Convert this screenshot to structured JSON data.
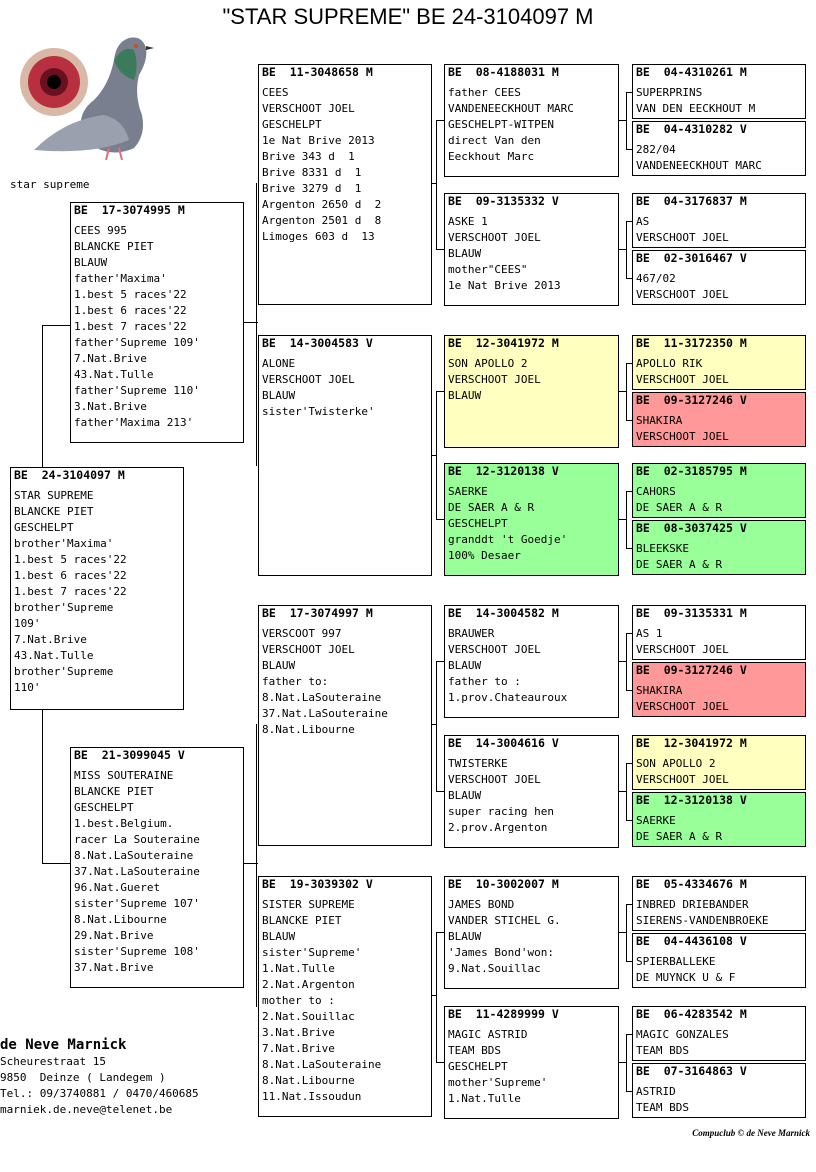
{
  "title": "\"STAR SUPREME\"  BE  24-3104097 M",
  "photo_caption": "star supreme",
  "colors": {
    "yellow": "#ffffc0",
    "green": "#99ff99",
    "red": "#ff9999"
  },
  "subject": {
    "header": "BE  24-3104097 M",
    "lines": [
      "STAR SUPREME",
      "BLANCKE PIET",
      "GESCHELPT",
      "brother'Maxima'",
      "1.best 5 races'22",
      "1.best 6 races'22",
      "1.best 7 races'22",
      "brother'Supreme",
      "109'",
      "7.Nat.Brive",
      "43.Nat.Tulle",
      "brother'Supreme",
      "110'"
    ]
  },
  "sire": {
    "header": "BE  17-3074995 M",
    "lines": [
      "CEES 995",
      "BLANCKE PIET",
      "BLAUW",
      "father'Maxima'",
      "1.best 5 races'22",
      "1.best 6 races'22",
      "1.best 7 races'22",
      "father'Supreme 109'",
      "7.Nat.Brive",
      "43.Nat.Tulle",
      "father'Supreme 110'",
      "3.Nat.Brive",
      "father'Maxima 213'"
    ]
  },
  "dam": {
    "header": "BE  21-3099045 V",
    "lines": [
      "MISS SOUTERAINE",
      "BLANCKE PIET",
      "GESCHELPT",
      "1.best.Belgium.",
      "racer La Souteraine",
      "8.Nat.LaSouteraine",
      "37.Nat.LaSouteraine",
      "96.Nat.Gueret",
      "sister'Supreme 107'",
      "8.Nat.Libourne",
      "29.Nat.Brive",
      "sister'Supreme 108'",
      "37.Nat.Brive"
    ]
  },
  "gen2": [
    {
      "header": "BE  11-3048658 M",
      "lines": [
        "CEES",
        "VERSCHOOT JOEL",
        "GESCHELPT",
        "1e Nat Brive 2013",
        "Brive 343 d  1",
        "Brive 8331 d  1",
        "Brive 3279 d  1",
        "Argenton 2650 d  2",
        "Argenton 2501 d  8",
        "Limoges 603 d  13"
      ]
    },
    {
      "header": "BE  14-3004583 V",
      "lines": [
        "ALONE",
        "VERSCHOOT JOEL",
        "BLAUW",
        "sister'Twisterke'"
      ]
    },
    {
      "header": "BE  17-3074997 M",
      "lines": [
        "VERSCOOT 997",
        "VERSCHOOT JOEL",
        "BLAUW",
        "father to:",
        "8.Nat.LaSouteraine",
        "37.Nat.LaSouteraine",
        "8.Nat.Libourne"
      ]
    },
    {
      "header": "BE  19-3039302 V",
      "lines": [
        "SISTER SUPREME",
        "BLANCKE PIET",
        "BLAUW",
        "sister'Supreme'",
        "1.Nat.Tulle",
        "2.Nat.Argenton",
        "mother to :",
        "2.Nat.Souillac",
        "3.Nat.Brive",
        "7.Nat.Brive",
        "8.Nat.LaSouteraine",
        "8.Nat.Libourne",
        "11.Nat.Issoudun"
      ]
    }
  ],
  "gen3": [
    {
      "header": "BE  08-4188031 M",
      "lines": [
        "father CEES",
        "VANDENEECKHOUT MARC",
        "GESCHELPT-WITPEN",
        "direct Van den",
        "Eeckhout Marc"
      ],
      "color": ""
    },
    {
      "header": "BE  09-3135332 V",
      "lines": [
        "ASKE 1",
        "VERSCHOOT JOEL",
        "BLAUW",
        "mother\"CEES\"",
        "1e Nat Brive 2013"
      ],
      "color": ""
    },
    {
      "header": "BE  12-3041972 M",
      "lines": [
        "SON APOLLO 2",
        "VERSCHOOT JOEL",
        "BLAUW"
      ],
      "color": "yellow"
    },
    {
      "header": "BE  12-3120138 V",
      "lines": [
        "SAERKE",
        "DE SAER A & R",
        "GESCHELPT",
        "granddt 't Goedje'",
        "100% Desaer"
      ],
      "color": "green"
    },
    {
      "header": "BE  14-3004582 M",
      "lines": [
        "BRAUWER",
        "VERSCHOOT JOEL",
        "BLAUW",
        "father to :",
        "1.prov.Chateauroux"
      ],
      "color": ""
    },
    {
      "header": "BE  14-3004616 V",
      "lines": [
        "TWISTERKE",
        "VERSCHOOT JOEL",
        "BLAUW",
        "super racing hen",
        "2.prov.Argenton"
      ],
      "color": ""
    },
    {
      "header": "BE  10-3002007 M",
      "lines": [
        "JAMES BOND",
        "VANDER STICHEL G.",
        "BLAUW",
        "'James Bond'won:",
        "9.Nat.Souillac"
      ],
      "color": ""
    },
    {
      "header": "BE  11-4289999 V",
      "lines": [
        "MAGIC ASTRID",
        "TEAM BDS",
        "GESCHELPT",
        "mother'Supreme'",
        "1.Nat.Tulle"
      ],
      "color": ""
    }
  ],
  "gen4": [
    {
      "header": "BE  04-4310261 M",
      "lines": [
        "SUPERPRINS",
        "VAN DEN EECKHOUT M"
      ],
      "color": ""
    },
    {
      "header": "BE  04-4310282 V",
      "lines": [
        "282/04",
        "VANDENEECKHOUT MARC"
      ],
      "color": ""
    },
    {
      "header": "BE  04-3176837 M",
      "lines": [
        "AS",
        "VERSCHOOT JOEL"
      ],
      "color": ""
    },
    {
      "header": "BE  02-3016467 V",
      "lines": [
        "467/02",
        "VERSCHOOT JOEL"
      ],
      "color": ""
    },
    {
      "header": "BE  11-3172350 M",
      "lines": [
        "APOLLO RIK",
        "VERSCHOOT JOEL"
      ],
      "color": "yellow"
    },
    {
      "header": "BE  09-3127246 V",
      "lines": [
        "SHAKIRA",
        "VERSCHOOT JOEL"
      ],
      "color": "red"
    },
    {
      "header": "BE  02-3185795 M",
      "lines": [
        "CAHORS",
        "DE SAER A & R"
      ],
      "color": "green"
    },
    {
      "header": "BE  08-3037425 V",
      "lines": [
        "BLEEKSKE",
        "DE SAER A & R"
      ],
      "color": "green"
    },
    {
      "header": "BE  09-3135331 M",
      "lines": [
        "AS 1",
        "VERSCHOOT JOEL"
      ],
      "color": ""
    },
    {
      "header": "BE  09-3127246 V",
      "lines": [
        "SHAKIRA",
        "VERSCHOOT JOEL"
      ],
      "color": "red"
    },
    {
      "header": "BE  12-3041972 M",
      "lines": [
        "SON APOLLO 2",
        "VERSCHOOT JOEL"
      ],
      "color": "yellow"
    },
    {
      "header": "BE  12-3120138 V",
      "lines": [
        "SAERKE",
        "DE SAER A & R"
      ],
      "color": "green"
    },
    {
      "header": "BE  05-4334676 M",
      "lines": [
        "INBRED DRIEBANDER",
        "SIERENS-VANDENBROEKE"
      ],
      "color": ""
    },
    {
      "header": "BE  04-4436108 V",
      "lines": [
        "SPIERBALLEKE",
        "DE MUYNCK U & F"
      ],
      "color": ""
    },
    {
      "header": "BE  06-4283542 M",
      "lines": [
        "MAGIC GONZALES",
        "TEAM BDS"
      ],
      "color": ""
    },
    {
      "header": "BE  07-3164863 V",
      "lines": [
        "ASTRID",
        "TEAM BDS"
      ],
      "color": ""
    }
  ],
  "owner": {
    "name": "de Neve Marnick",
    "lines": [
      "Scheurestraat 15",
      "9850  Deinze ( Landegem )",
      "Tel.: 09/3740881 / 0470/460685",
      "marniek.de.neve@telenet.be"
    ]
  },
  "footer": "Compuclub © de Neve Marnick"
}
